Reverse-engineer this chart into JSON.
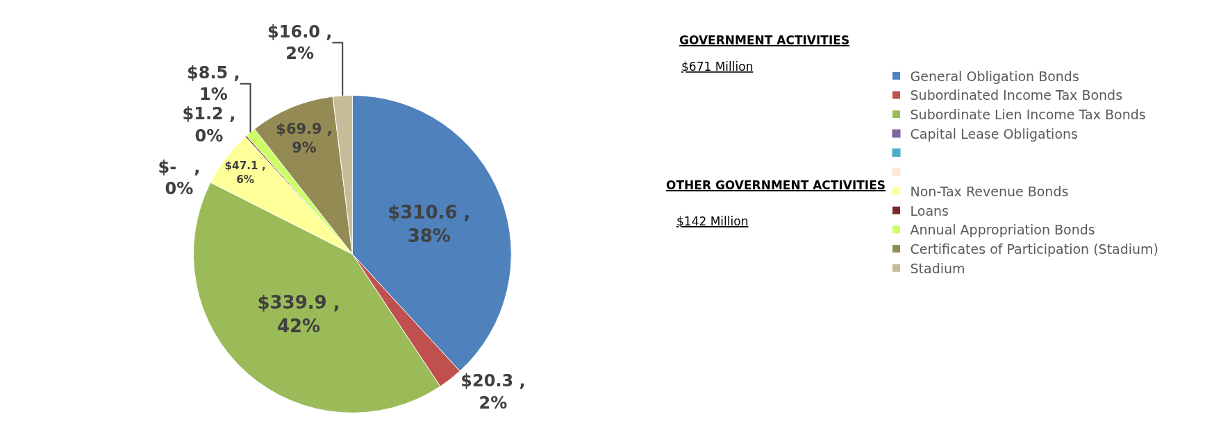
{
  "chart_data": {
    "type": "pie",
    "categories": [
      "General Obligation Bonds",
      "Subordinated Income Tax Bonds",
      "Subordinate Lien Income Tax Bonds",
      "Capital Lease Obligations",
      null,
      null,
      "Non-Tax Revenue Bonds",
      "Loans",
      "Annual Appropriation Bonds",
      "Certificates of Participation (Stadium)",
      "Stadium"
    ],
    "values": [
      310.6,
      20.3,
      339.9,
      0,
      0,
      0,
      47.1,
      1.2,
      8.5,
      69.9,
      16.0
    ],
    "colors": [
      "#4f81bd",
      "#c0504d",
      "#9bbb59",
      "#8064a2",
      "#4bacc6",
      "#fde9d9",
      "#ffff99",
      "#772c2a",
      "#ccff66",
      "#948a54",
      "#c4bd97"
    ],
    "value_labels": [
      "$310.6 , 38%",
      "$20.3 , 2%",
      "$339.9 , 42%",
      "$-   , 0%",
      null,
      null,
      "$47.1 , 6%",
      "$1.2 , 0%",
      "$8.5 , 1%",
      "$69.9 , 9%",
      "$16.0 , 2%"
    ],
    "annotations": [
      "GOVERNMENT ACTIVITIES",
      "$671 Million",
      "OTHER GOVERNMENT ACTIVITIES",
      "$142 Million"
    ],
    "legend": "right"
  }
}
